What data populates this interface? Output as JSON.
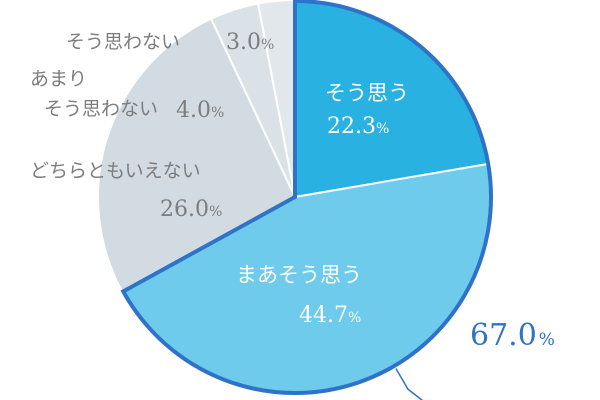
{
  "chart_data": {
    "type": "pie",
    "slices": [
      {
        "label": "そう思う",
        "value": 22.3,
        "color": "#29b1e2"
      },
      {
        "label": "まあそう思う",
        "value": 44.7,
        "color": "#6fcbec"
      },
      {
        "label": "どちらともいえない",
        "value": 26.0,
        "color": "#d2dbe2"
      },
      {
        "label": "あまり\nそう思わない",
        "value": 4.0,
        "color": "#dbe2e7"
      },
      {
        "label": "そう思わない",
        "value": 3.0,
        "color": "#e2e7eb"
      }
    ],
    "value_suffix": "%",
    "highlight": {
      "value": "67.0",
      "suffix": "%",
      "color": "#2f73c9"
    }
  }
}
